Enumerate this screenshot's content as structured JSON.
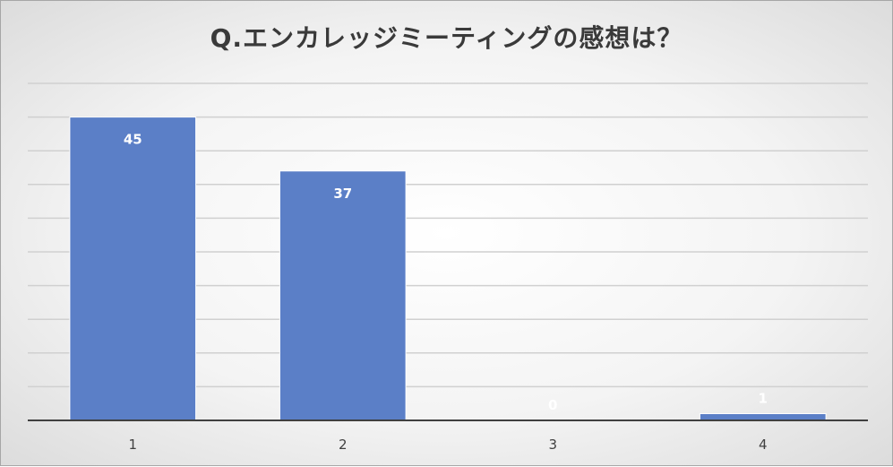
{
  "chart_data": {
    "type": "bar",
    "title": "Q.エンカレッジミーティングの感想は？",
    "categories": [
      "1",
      "2",
      "3",
      "4"
    ],
    "values": [
      45,
      37,
      0,
      1
    ],
    "ylim": [
      0,
      50
    ],
    "y_gridline_step": 5,
    "grid": true,
    "y_tick_labels_shown": false,
    "legend": "none",
    "bar_color": "#5b7fc7",
    "bar_edge_color": "#ffffff"
  }
}
